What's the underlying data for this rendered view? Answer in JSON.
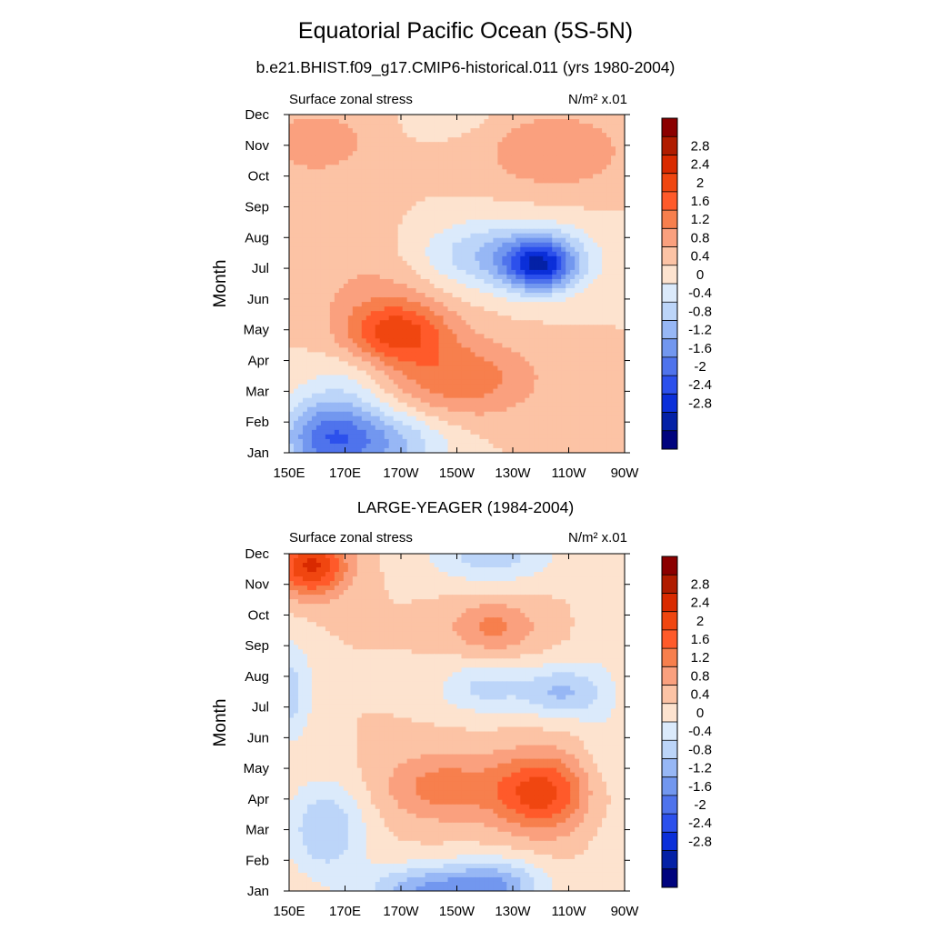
{
  "figure": {
    "title": "Equatorial Pacific Ocean (5S-5N)",
    "subtitle": "b.e21.BHIST.f09_g17.CMIP6-historical.011 (yrs 1980-2004)"
  },
  "colorbar": {
    "labels": [
      "2.8",
      "2.4",
      "2",
      "1.6",
      "1.2",
      "0.8",
      "0.4",
      "0",
      "-0.4",
      "-0.8",
      "-1.2",
      "-1.6",
      "-2",
      "-2.4",
      "-2.8"
    ],
    "colors": [
      "#8b0000",
      "#b01c00",
      "#d92a00",
      "#f04610",
      "#ff5a2a",
      "#f77f4d",
      "#faa07e",
      "#fcc3a5",
      "#fde3cf",
      "#dbeafb",
      "#bcd5f9",
      "#97b7f5",
      "#7297ef",
      "#4f73ec",
      "#2c50ec",
      "#0b2fd9",
      "#0421a6",
      "#00037e"
    ]
  },
  "chart_data": [
    {
      "type": "heatmap",
      "left_label": "Surface zonal stress",
      "right_label": "N/m² x.01",
      "ylabel": "Month",
      "x_ticks": [
        "150E",
        "170E",
        "170W",
        "150W",
        "130W",
        "110W",
        "90W"
      ],
      "y_ticks": [
        "Jan",
        "Feb",
        "Mar",
        "Apr",
        "May",
        "Jun",
        "Jul",
        "Aug",
        "Sep",
        "Oct",
        "Nov",
        "Dec"
      ],
      "x_range_lon": [
        150,
        270
      ],
      "y_range_month": [
        1,
        12
      ],
      "contour_levels": [
        -2.8,
        -2.4,
        -2.0,
        -1.6,
        -1.2,
        -0.8,
        -0.4,
        0,
        0.4,
        0.8,
        1.2,
        1.6,
        2.0,
        2.4,
        2.8
      ],
      "features": [
        {
          "lon": 163,
          "month": 1.5,
          "value": -1.9,
          "sx": 12,
          "sy": 0.9
        },
        {
          "lon": 185,
          "month": 1.3,
          "value": -1.3,
          "sx": 15,
          "sy": 0.8
        },
        {
          "lon": 172,
          "month": 3.3,
          "value": -0.5,
          "sx": 12,
          "sy": 0.9
        },
        {
          "lon": 188,
          "month": 4.9,
          "value": 1.6,
          "sx": 13,
          "sy": 0.7
        },
        {
          "lon": 210,
          "month": 3.4,
          "value": 1.1,
          "sx": 20,
          "sy": 0.9
        },
        {
          "lon": 183,
          "month": 6.5,
          "value": 0.5,
          "sx": 18,
          "sy": 1.3
        },
        {
          "lon": 240,
          "month": 7.1,
          "value": -2.4,
          "sx": 9,
          "sy": 0.6
        },
        {
          "lon": 225,
          "month": 7.4,
          "value": -1.3,
          "sx": 22,
          "sy": 0.8
        },
        {
          "lon": 160,
          "month": 11.1,
          "value": 0.8,
          "sx": 12,
          "sy": 0.7
        },
        {
          "lon": 245,
          "month": 10.8,
          "value": 0.8,
          "sx": 18,
          "sy": 0.9
        },
        {
          "lon": 210,
          "month": 12.0,
          "value": -0.3,
          "sx": 10,
          "sy": 0.5
        }
      ]
    },
    {
      "type": "heatmap",
      "title": "LARGE-YEAGER (1984-2004)",
      "left_label": "Surface zonal stress",
      "right_label": "N/m² x.01",
      "ylabel": "Month",
      "x_ticks": [
        "150E",
        "170E",
        "170W",
        "150W",
        "130W",
        "110W",
        "90W"
      ],
      "y_ticks": [
        "Jan",
        "Feb",
        "Mar",
        "Apr",
        "May",
        "Jun",
        "Jul",
        "Aug",
        "Sep",
        "Oct",
        "Nov",
        "Dec"
      ],
      "x_range_lon": [
        150,
        270
      ],
      "y_range_month": [
        1,
        12
      ],
      "contour_levels": [
        -2.8,
        -2.4,
        -2.0,
        -1.6,
        -1.2,
        -0.8,
        -0.4,
        0,
        0.4,
        0.8,
        1.2,
        1.6,
        2.0,
        2.4,
        2.8
      ],
      "features": [
        {
          "lon": 158,
          "month": 11.6,
          "value": 2.1,
          "sx": 9,
          "sy": 0.7
        },
        {
          "lon": 163,
          "month": 3.0,
          "value": -1.2,
          "sx": 10,
          "sy": 1.1
        },
        {
          "lon": 150,
          "month": 7.5,
          "value": -1.0,
          "sx": 6,
          "sy": 1.2
        },
        {
          "lon": 200,
          "month": 1.0,
          "value": -1.6,
          "sx": 16,
          "sy": 0.6
        },
        {
          "lon": 225,
          "month": 1.2,
          "value": -1.3,
          "sx": 12,
          "sy": 0.6
        },
        {
          "lon": 240,
          "month": 4.2,
          "value": 1.8,
          "sx": 12,
          "sy": 0.9
        },
        {
          "lon": 205,
          "month": 4.4,
          "value": 1.0,
          "sx": 15,
          "sy": 0.8
        },
        {
          "lon": 248,
          "month": 7.5,
          "value": -1.2,
          "sx": 10,
          "sy": 0.6
        },
        {
          "lon": 220,
          "month": 7.6,
          "value": -0.9,
          "sx": 12,
          "sy": 0.6
        },
        {
          "lon": 223,
          "month": 9.6,
          "value": 0.9,
          "sx": 11,
          "sy": 0.6
        },
        {
          "lon": 222,
          "month": 11.9,
          "value": -1.0,
          "sx": 16,
          "sy": 0.6
        },
        {
          "lon": 262,
          "month": 6.0,
          "value": -0.3,
          "sx": 6,
          "sy": 3.0
        }
      ]
    }
  ]
}
